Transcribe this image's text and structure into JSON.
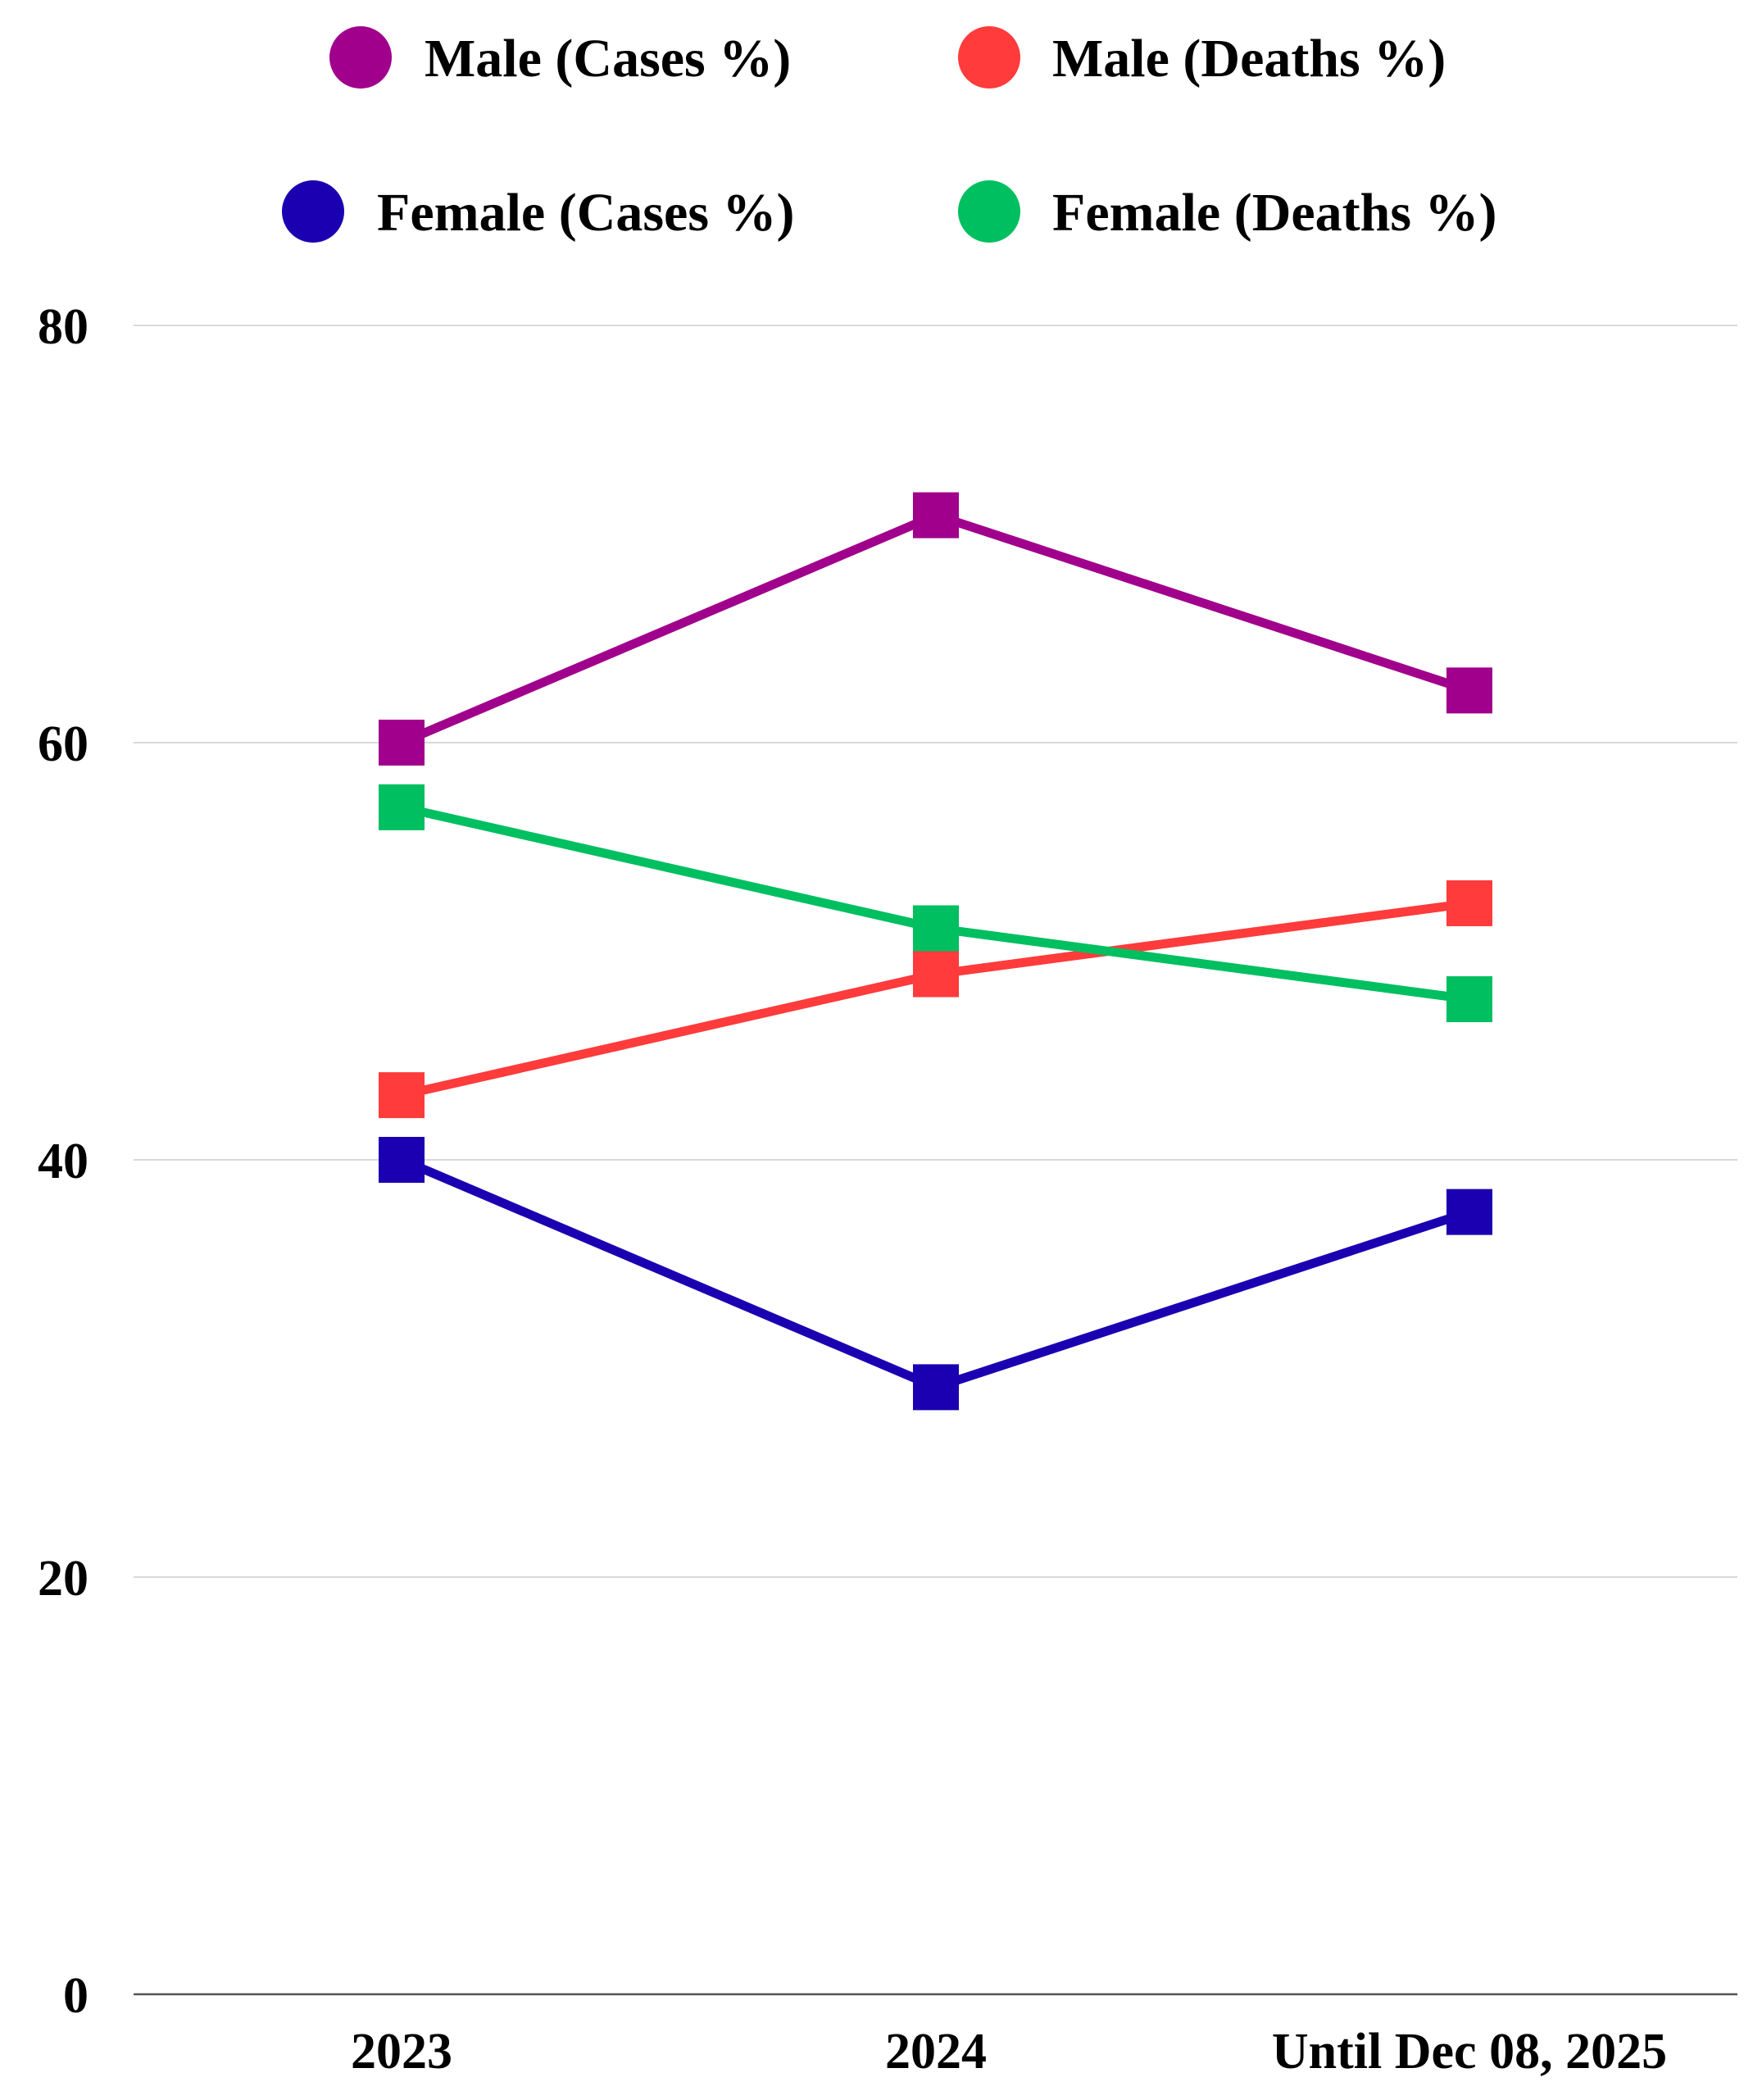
{
  "chart_data": {
    "type": "line",
    "title": "",
    "xlabel": "",
    "ylabel": "",
    "categories": [
      "2023",
      "2024",
      "Until Dec 08, 2025"
    ],
    "ylim": [
      0,
      80
    ],
    "yticks": [
      0,
      20,
      40,
      60,
      80
    ],
    "ytick_labels": [
      "0",
      "20",
      "40",
      "60",
      "80"
    ],
    "grid": true,
    "legend_position": "top",
    "marker": "square",
    "series": [
      {
        "name": "Male (Cases %)",
        "color": "#A0008C",
        "values": [
          60.0,
          70.9,
          62.5
        ]
      },
      {
        "name": "Male (Deaths %)",
        "color": "#FF3B3B",
        "values": [
          43.1,
          48.9,
          52.3
        ]
      },
      {
        "name": "Female (Cases %)",
        "color": "#1A00B0",
        "values": [
          40.0,
          29.1,
          37.5
        ]
      },
      {
        "name": "Female (Deaths %)",
        "color": "#00BF60",
        "values": [
          56.9,
          51.1,
          47.7
        ]
      }
    ]
  }
}
